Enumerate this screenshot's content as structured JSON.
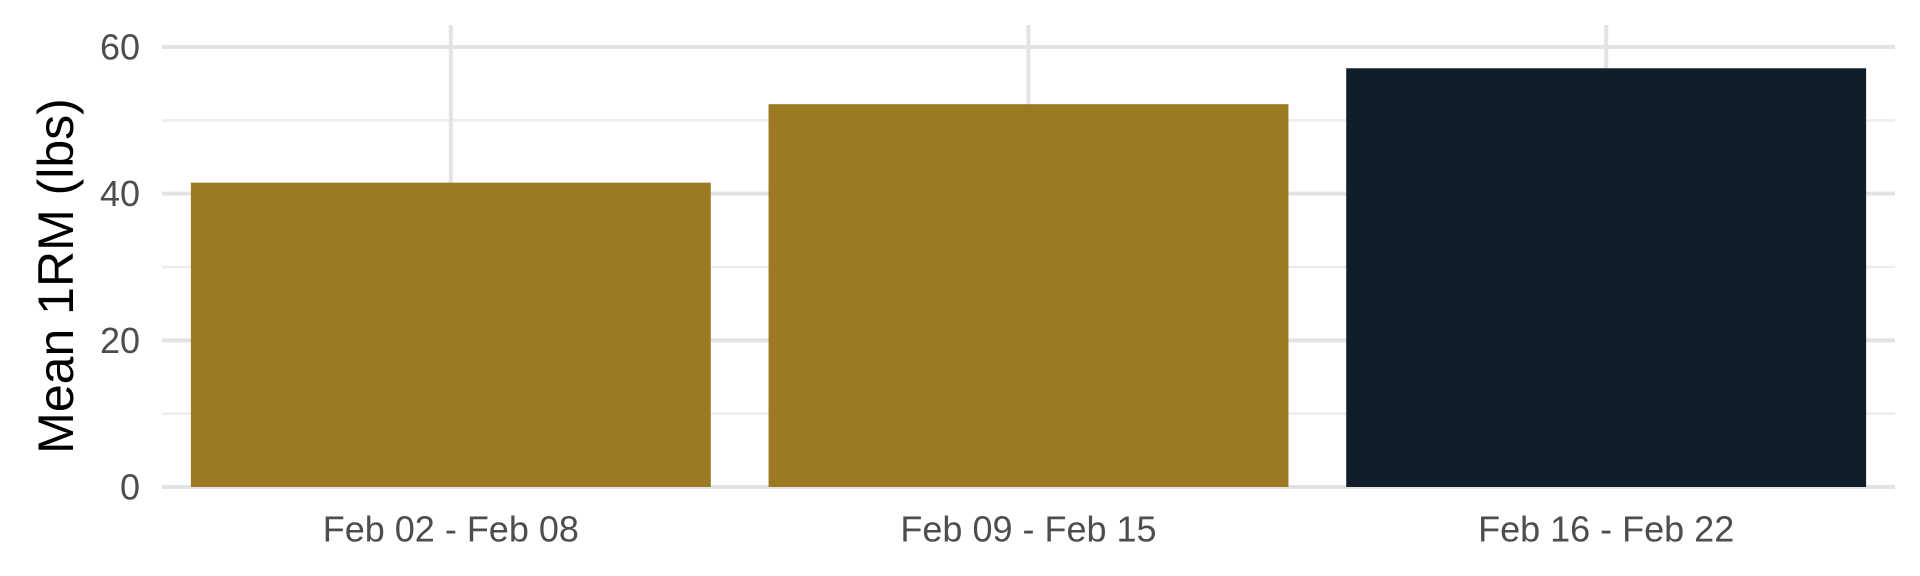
{
  "chart_data": {
    "type": "bar",
    "categories": [
      "Feb 02 - Feb 08",
      "Feb 09 - Feb 15",
      "Feb 16 - Feb 22"
    ],
    "values": [
      41.5,
      52.2,
      57.1
    ],
    "bar_colors": [
      "#9c7a23",
      "#9c7a23",
      "#101d2b"
    ],
    "title": "",
    "xlabel": "",
    "ylabel": "Mean 1RM (lbs)",
    "ylim": [
      0,
      60
    ],
    "yticks": [
      0,
      20,
      40,
      60
    ],
    "grid": true,
    "legend": "none"
  }
}
